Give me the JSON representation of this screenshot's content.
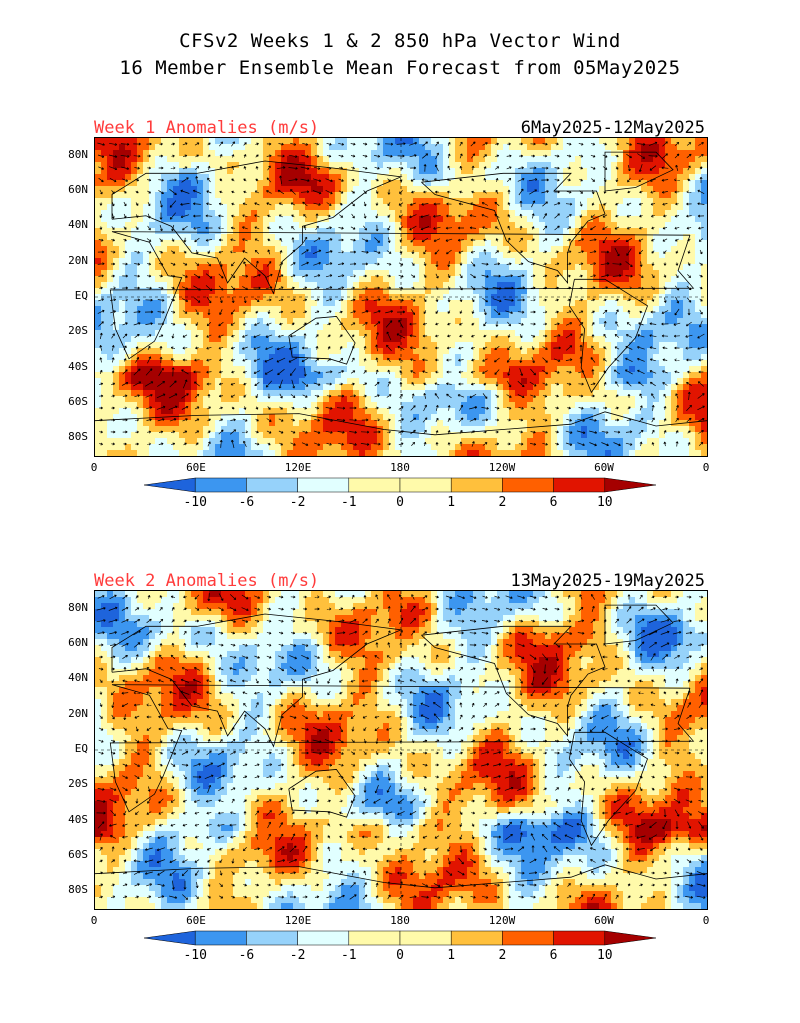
{
  "figure": {
    "title_line1": "CFSv2 Weeks 1 & 2 850 hPa Vector Wind",
    "title_line2": "16 Member Ensemble Mean Forecast from 05May2025"
  },
  "colors": {
    "palette": [
      "#1e64dc",
      "#3c96f0",
      "#96d2fa",
      "#e1ffff",
      "#fffaaa",
      "#ffc03c",
      "#ff6000",
      "#e11400",
      "#a50000"
    ],
    "title_red": "#ff3b3b"
  },
  "axes": {
    "lat_labels": [
      "80N",
      "60N",
      "40N",
      "20N",
      "EQ",
      "20S",
      "40S",
      "60S",
      "80S"
    ],
    "lat_values": [
      80,
      60,
      40,
      20,
      0,
      -20,
      -40,
      -60,
      -80
    ],
    "lon_labels": [
      "0",
      "60E",
      "120E",
      "180",
      "120W",
      "60W",
      "0"
    ],
    "lon_values": [
      0,
      60,
      120,
      180,
      240,
      300,
      360
    ],
    "lat_range": [
      -90,
      90
    ],
    "lon_range": [
      0,
      360
    ]
  },
  "colorbar": {
    "labels": [
      "-10",
      "-6",
      "-2",
      "-1",
      "0",
      "1",
      "2",
      "6",
      "10"
    ],
    "bins": 10
  },
  "panels": [
    {
      "title": "Week 1 Anomalies (m/s)",
      "date_range": "6May2025-12May2025"
    },
    {
      "title": "Week 2 Anomalies (m/s)",
      "date_range": "13May2025-19May2025"
    }
  ]
}
